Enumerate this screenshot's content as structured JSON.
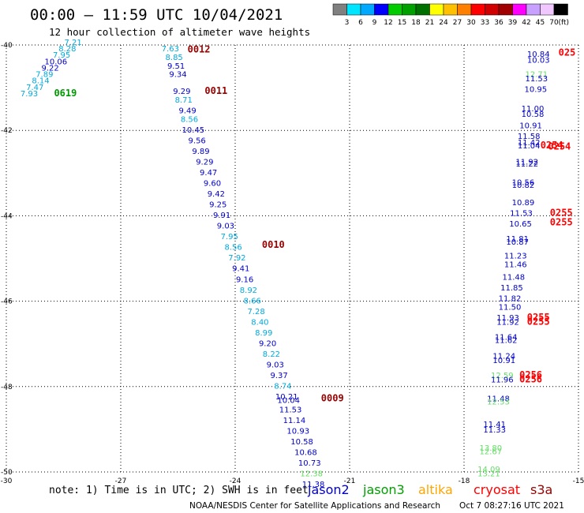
{
  "title": "00:00 – 11:59 UTC 10/04/2021",
  "subtitle": "12 hour collection of altimeter wave heights",
  "colorbar": {
    "colors": [
      "#808080",
      "#00e5ff",
      "#00a8ff",
      "#0000ff",
      "#00cc00",
      "#00a000",
      "#007000",
      "#ffff00",
      "#ffc000",
      "#ff8000",
      "#ff0000",
      "#d00000",
      "#a00000",
      "#ff00ff",
      "#c8a0ff",
      "#f0c8ff",
      "#000000"
    ],
    "labels": [
      "3",
      "6",
      "9",
      "12",
      "15",
      "18",
      "21",
      "24",
      "27",
      "30",
      "33",
      "36",
      "39",
      "42",
      "45",
      "70"
    ],
    "unit": "(ft)"
  },
  "note": "note: 1) Time is in UTC; 2) SWH is in feet",
  "satellites": [
    {
      "name": "jason2",
      "color": "#0000cc"
    },
    {
      "name": "jason3",
      "color": "#00a000"
    },
    {
      "name": "altika",
      "color": "#ffa500"
    },
    {
      "name": "cryosat",
      "color": "#ff0000"
    },
    {
      "name": "s3a",
      "color": "#990000"
    }
  ],
  "credit": "NOAA/NESDIS Center for Satellite Applications and Research",
  "generated": "Oct  7 08:27:16 UTC 2021",
  "chart_data": {
    "type": "scatter",
    "xlim": [
      -30,
      -15
    ],
    "ylim": [
      -50,
      -40
    ],
    "x_ticks": [
      -30,
      -27,
      -24,
      -21,
      -18,
      -15
    ],
    "y_ticks": [
      -40,
      -42,
      -44,
      -46,
      -48,
      -50
    ],
    "grid": true,
    "points": [
      {
        "x": -28.25,
        "y": -40.0,
        "v": "7.21",
        "c": "#00aadd"
      },
      {
        "x": -28.4,
        "y": -40.15,
        "v": "8.28",
        "c": "#00aadd"
      },
      {
        "x": -28.55,
        "y": -40.3,
        "v": "7.95",
        "c": "#00aadd"
      },
      {
        "x": -28.7,
        "y": -40.45,
        "v": "10.06",
        "c": "#0000cc"
      },
      {
        "x": -28.85,
        "y": -40.6,
        "v": "9.22",
        "c": "#0000cc"
      },
      {
        "x": -29.0,
        "y": -40.75,
        "v": "7.89",
        "c": "#00aadd"
      },
      {
        "x": -29.1,
        "y": -40.9,
        "v": "8.14",
        "c": "#00aadd"
      },
      {
        "x": -29.25,
        "y": -41.05,
        "v": "7.47",
        "c": "#00aadd"
      },
      {
        "x": -29.4,
        "y": -41.2,
        "v": "7.93",
        "c": "#00aadd"
      },
      {
        "x": -25.7,
        "y": -40.15,
        "v": "7.63",
        "c": "#00aadd"
      },
      {
        "x": -25.6,
        "y": -40.35,
        "v": "8.85",
        "c": "#00aadd"
      },
      {
        "x": -25.55,
        "y": -40.55,
        "v": "9.51",
        "c": "#0000cc"
      },
      {
        "x": -25.5,
        "y": -40.75,
        "v": "9.34",
        "c": "#0000cc"
      },
      {
        "x": -25.4,
        "y": -41.15,
        "v": "9.29",
        "c": "#0000cc"
      },
      {
        "x": -25.35,
        "y": -41.35,
        "v": "8.71",
        "c": "#00aadd"
      },
      {
        "x": -25.25,
        "y": -41.6,
        "v": "9.49",
        "c": "#0000cc"
      },
      {
        "x": -25.2,
        "y": -41.8,
        "v": "8.56",
        "c": "#00aadd"
      },
      {
        "x": -25.1,
        "y": -42.05,
        "v": "10.45",
        "c": "#0000cc"
      },
      {
        "x": -25.0,
        "y": -42.3,
        "v": "9.56",
        "c": "#0000cc"
      },
      {
        "x": -24.9,
        "y": -42.55,
        "v": "9.89",
        "c": "#0000cc"
      },
      {
        "x": -24.8,
        "y": -42.8,
        "v": "9.29",
        "c": "#0000cc"
      },
      {
        "x": -24.7,
        "y": -43.05,
        "v": "9.47",
        "c": "#0000cc"
      },
      {
        "x": -24.6,
        "y": -43.3,
        "v": "9.60",
        "c": "#0000cc"
      },
      {
        "x": -24.5,
        "y": -43.55,
        "v": "9.42",
        "c": "#0000cc"
      },
      {
        "x": -24.45,
        "y": -43.8,
        "v": "9.25",
        "c": "#0000cc"
      },
      {
        "x": -24.35,
        "y": -44.05,
        "v": "9.91",
        "c": "#0000cc"
      },
      {
        "x": -24.25,
        "y": -44.3,
        "v": "9.03",
        "c": "#0000cc"
      },
      {
        "x": -24.15,
        "y": -44.55,
        "v": "7.95",
        "c": "#00aadd"
      },
      {
        "x": -24.05,
        "y": -44.8,
        "v": "8.56",
        "c": "#00aadd"
      },
      {
        "x": -23.95,
        "y": -45.05,
        "v": "7.92",
        "c": "#00aadd"
      },
      {
        "x": -23.85,
        "y": -45.3,
        "v": "9.41",
        "c": "#0000cc"
      },
      {
        "x": -23.75,
        "y": -45.55,
        "v": "9.16",
        "c": "#0000cc"
      },
      {
        "x": -23.65,
        "y": -45.8,
        "v": "8.92",
        "c": "#00aadd"
      },
      {
        "x": -23.55,
        "y": -46.05,
        "v": "8.66",
        "c": "#00aadd"
      },
      {
        "x": -23.45,
        "y": -46.3,
        "v": "7.28",
        "c": "#00aadd"
      },
      {
        "x": -23.35,
        "y": -46.55,
        "v": "8.40",
        "c": "#00aadd"
      },
      {
        "x": -23.25,
        "y": -46.8,
        "v": "8.99",
        "c": "#00aadd"
      },
      {
        "x": -23.15,
        "y": -47.05,
        "v": "9.20",
        "c": "#0000cc"
      },
      {
        "x": -23.05,
        "y": -47.3,
        "v": "8.22",
        "c": "#00aadd"
      },
      {
        "x": -22.95,
        "y": -47.55,
        "v": "9.03",
        "c": "#0000cc"
      },
      {
        "x": -22.85,
        "y": -47.8,
        "v": "9.37",
        "c": "#0000cc"
      },
      {
        "x": -22.75,
        "y": -48.05,
        "v": "8.74",
        "c": "#00aadd"
      },
      {
        "x": -22.65,
        "y": -48.3,
        "v": "10.21",
        "c": "#0000cc"
      },
      {
        "x": -22.6,
        "y": -48.38,
        "v": "10.04",
        "c": "#0000cc"
      },
      {
        "x": -22.55,
        "y": -48.6,
        "v": "11.53",
        "c": "#0000cc"
      },
      {
        "x": -22.45,
        "y": -48.85,
        "v": "11.14",
        "c": "#0000cc"
      },
      {
        "x": -22.35,
        "y": -49.1,
        "v": "10.93",
        "c": "#0000cc"
      },
      {
        "x": -22.25,
        "y": -49.35,
        "v": "10.58",
        "c": "#0000cc"
      },
      {
        "x": -22.15,
        "y": -49.6,
        "v": "10.68",
        "c": "#0000cc"
      },
      {
        "x": -22.05,
        "y": -49.85,
        "v": "10.73",
        "c": "#0000cc"
      },
      {
        "x": -22.0,
        "y": -50.1,
        "v": "12.38",
        "c": "#66dd66"
      },
      {
        "x": -21.95,
        "y": -50.35,
        "v": "11.38",
        "c": "#0000cc"
      },
      {
        "x": -16.05,
        "y": -40.28,
        "v": "10.84",
        "c": "#0000cc"
      },
      {
        "x": -16.05,
        "y": -40.42,
        "v": "10.03",
        "c": "#0000cc"
      },
      {
        "x": -16.1,
        "y": -40.75,
        "v": "12.71",
        "c": "#66dd66"
      },
      {
        "x": -16.1,
        "y": -40.85,
        "v": "11.53",
        "c": "#0000cc"
      },
      {
        "x": -16.12,
        "y": -41.1,
        "v": "10.95",
        "c": "#0000cc"
      },
      {
        "x": -16.2,
        "y": -41.55,
        "v": "11.00",
        "c": "#0000cc"
      },
      {
        "x": -16.2,
        "y": -41.68,
        "v": "10.58",
        "c": "#0000cc"
      },
      {
        "x": -16.25,
        "y": -41.95,
        "v": "10.91",
        "c": "#0000cc"
      },
      {
        "x": -16.3,
        "y": -42.2,
        "v": "11.58",
        "c": "#0000cc"
      },
      {
        "x": -16.3,
        "y": -42.35,
        "v": "11.42",
        "c": "#0000cc"
      },
      {
        "x": -16.3,
        "y": -42.42,
        "v": "11.04",
        "c": "#0000cc"
      },
      {
        "x": -16.35,
        "y": -42.8,
        "v": "11.92",
        "c": "#0000cc"
      },
      {
        "x": -16.35,
        "y": -42.85,
        "v": "11.22",
        "c": "#0000cc"
      },
      {
        "x": -16.45,
        "y": -43.28,
        "v": "10.56",
        "c": "#0000cc"
      },
      {
        "x": -16.45,
        "y": -43.35,
        "v": "10.82",
        "c": "#0000cc"
      },
      {
        "x": -16.45,
        "y": -43.75,
        "v": "10.89",
        "c": "#0000cc"
      },
      {
        "x": -16.5,
        "y": -44.0,
        "v": "11.53",
        "c": "#0000cc"
      },
      {
        "x": -16.52,
        "y": -44.25,
        "v": "10.65",
        "c": "#0000cc"
      },
      {
        "x": -16.6,
        "y": -44.6,
        "v": "11.81",
        "c": "#0000cc"
      },
      {
        "x": -16.6,
        "y": -44.68,
        "v": "10.87",
        "c": "#0000cc"
      },
      {
        "x": -16.65,
        "y": -45.0,
        "v": "11.23",
        "c": "#0000cc"
      },
      {
        "x": -16.65,
        "y": -45.2,
        "v": "11.46",
        "c": "#0000cc"
      },
      {
        "x": -16.7,
        "y": -45.5,
        "v": "11.48",
        "c": "#0000cc"
      },
      {
        "x": -16.75,
        "y": -45.75,
        "v": "11.85",
        "c": "#0000cc"
      },
      {
        "x": -16.8,
        "y": -46.0,
        "v": "11.82",
        "c": "#0000cc"
      },
      {
        "x": -16.8,
        "y": -46.2,
        "v": "11.50",
        "c": "#0000cc"
      },
      {
        "x": -16.85,
        "y": -46.45,
        "v": "11.93",
        "c": "#0000cc"
      },
      {
        "x": -16.85,
        "y": -46.55,
        "v": "11.92",
        "c": "#0000cc"
      },
      {
        "x": -16.9,
        "y": -46.9,
        "v": "11.64",
        "c": "#0000cc"
      },
      {
        "x": -16.9,
        "y": -46.98,
        "v": "11.62",
        "c": "#0000cc"
      },
      {
        "x": -16.95,
        "y": -47.35,
        "v": "11.24",
        "c": "#0000cc"
      },
      {
        "x": -16.95,
        "y": -47.45,
        "v": "10.91",
        "c": "#0000cc"
      },
      {
        "x": -17.0,
        "y": -47.8,
        "v": "12.59",
        "c": "#66dd66"
      },
      {
        "x": -17.0,
        "y": -47.9,
        "v": "11.96",
        "c": "#0000cc"
      },
      {
        "x": -17.1,
        "y": -48.35,
        "v": "11.48",
        "c": "#0000cc"
      },
      {
        "x": -17.1,
        "y": -48.42,
        "v": "12.53",
        "c": "#66dd66"
      },
      {
        "x": -17.2,
        "y": -48.95,
        "v": "11.41",
        "c": "#0000cc"
      },
      {
        "x": -17.2,
        "y": -49.08,
        "v": "11.33",
        "c": "#0000cc"
      },
      {
        "x": -17.3,
        "y": -49.5,
        "v": "13.80",
        "c": "#66dd66"
      },
      {
        "x": -17.3,
        "y": -49.58,
        "v": "12.67",
        "c": "#66dd66"
      },
      {
        "x": -17.35,
        "y": -50.0,
        "v": "14.09",
        "c": "#66dd66"
      },
      {
        "x": -17.35,
        "y": -50.1,
        "v": "13.21",
        "c": "#66dd66"
      }
    ],
    "time_labels": [
      {
        "x": -28.45,
        "y": -41.2,
        "t": "0619",
        "c": "#009900"
      },
      {
        "x": -24.95,
        "y": -40.18,
        "t": "0012",
        "c": "#990000"
      },
      {
        "x": -24.5,
        "y": -41.15,
        "t": "0011",
        "c": "#990000"
      },
      {
        "x": -23.0,
        "y": -44.75,
        "t": "0010",
        "c": "#990000"
      },
      {
        "x": -21.45,
        "y": -48.35,
        "t": "0009",
        "c": "#990000"
      },
      {
        "x": -15.3,
        "y": -40.25,
        "t": "025",
        "c": "#ff0000"
      },
      {
        "x": -15.7,
        "y": -42.42,
        "t": "0254",
        "c": "#ff0000"
      },
      {
        "x": -15.5,
        "y": -42.45,
        "t": "0254",
        "c": "#ff0000"
      },
      {
        "x": -15.45,
        "y": -44.0,
        "t": "0255",
        "c": "#ff0000"
      },
      {
        "x": -15.45,
        "y": -44.22,
        "t": "0255",
        "c": "#ff0000"
      },
      {
        "x": -16.05,
        "y": -46.45,
        "t": "0255",
        "c": "#ff0000"
      },
      {
        "x": -16.05,
        "y": -46.55,
        "t": "0255",
        "c": "#ff0000"
      },
      {
        "x": -16.25,
        "y": -47.8,
        "t": "0256",
        "c": "#ff0000"
      },
      {
        "x": -16.25,
        "y": -47.9,
        "t": "0256",
        "c": "#ff0000"
      }
    ]
  }
}
